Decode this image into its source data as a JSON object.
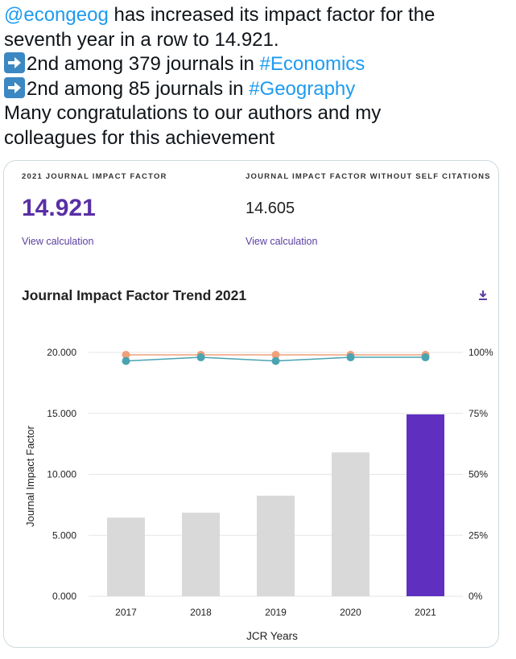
{
  "tweet": {
    "line1": {
      "mention": "@econgeog",
      "text": " has increased its impact factor for the"
    },
    "line2": "seventh year in a row to 14.921.",
    "line3": {
      "text": "2nd among 379 journals in ",
      "hashtag": "#Economics"
    },
    "line4": {
      "text": "2nd among 85 journals in ",
      "hashtag": "#Geography"
    },
    "line5": "Many congratulations to our authors and my",
    "line6": "colleagues for this achievement",
    "icons": {
      "bullet": "right-arrow-emoji-icon"
    }
  },
  "card": {
    "jif": {
      "label": "2021 JOURNAL IMPACT FACTOR",
      "value": "14.921",
      "link": "View calculation"
    },
    "jif_no_self": {
      "label": "JOURNAL IMPACT FACTOR WITHOUT SELF CITATIONS",
      "value": "14.605",
      "link": "View calculation"
    },
    "trend_title": "Journal Impact Factor Trend 2021",
    "download_icon": "download-icon"
  },
  "chart_data": {
    "type": "bar",
    "categories": [
      "2017",
      "2018",
      "2019",
      "2020",
      "2021"
    ],
    "series": [
      {
        "type": "bar",
        "axis": "left",
        "values": [
          6.45,
          6.85,
          8.25,
          11.8,
          14.921
        ],
        "colors": [
          "#d9d9d9",
          "#d9d9d9",
          "#d9d9d9",
          "#d9d9d9",
          "#5f30c0"
        ]
      },
      {
        "type": "line",
        "axis": "right",
        "values": [
          99,
          99,
          99,
          99,
          99
        ],
        "color": "#f0a07a"
      },
      {
        "type": "line",
        "axis": "right",
        "values": [
          96.5,
          98,
          96.5,
          98,
          98
        ],
        "color": "#4aa3b0"
      }
    ],
    "xlabel": "JCR Years",
    "ylabel": "Journal Impact Factor",
    "ylim": [
      0,
      20
    ],
    "yticks": [
      "0.000",
      "5.000",
      "10.000",
      "15.000",
      "20.000"
    ],
    "y2lim": [
      0,
      100
    ],
    "y2ticks": [
      "0%",
      "25%",
      "50%",
      "75%",
      "100%"
    ],
    "grid": true
  }
}
